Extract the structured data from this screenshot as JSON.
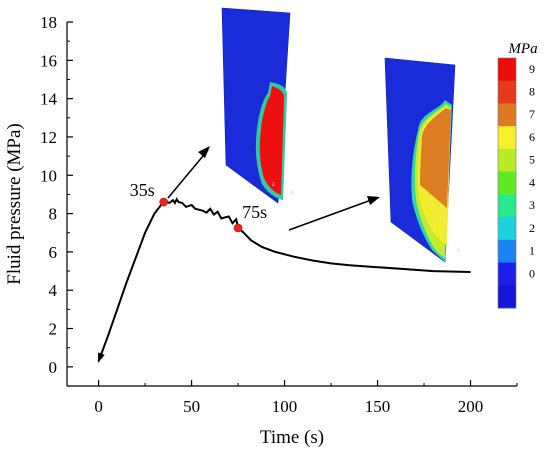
{
  "chart_data": {
    "type": "line",
    "xlabel": "Time (s)",
    "ylabel": "Fluid pressure (MPa)",
    "xlim": [
      -17,
      225
    ],
    "ylim": [
      -1,
      18
    ],
    "xticks": [
      0,
      50,
      100,
      150,
      200
    ],
    "yticks": [
      0,
      2,
      4,
      6,
      8,
      10,
      12,
      14,
      16,
      18
    ],
    "grid": false,
    "series": [
      {
        "x": [
          0,
          5,
          10,
          15,
          20,
          25,
          30,
          34,
          35,
          36,
          38,
          40,
          41,
          42,
          43,
          45,
          47,
          50,
          52,
          54,
          56,
          58,
          60,
          62,
          64,
          66,
          68,
          70,
          72,
          74,
          75,
          78,
          82,
          88,
          95,
          105,
          115,
          125,
          135,
          150,
          165,
          180,
          200
        ],
        "y": [
          0.3,
          1.6,
          3.0,
          4.4,
          5.7,
          7.0,
          8.0,
          8.5,
          8.6,
          8.65,
          8.55,
          8.7,
          8.55,
          8.75,
          8.6,
          8.55,
          8.35,
          8.45,
          8.25,
          8.2,
          8.15,
          8.05,
          8.25,
          7.95,
          8.1,
          7.75,
          7.8,
          7.85,
          7.5,
          7.7,
          7.25,
          7.0,
          6.6,
          6.25,
          6.0,
          5.75,
          5.55,
          5.4,
          5.3,
          5.2,
          5.1,
          5.0,
          4.95
        ]
      }
    ],
    "markers": [
      {
        "label": "35s",
        "x": 35,
        "y": 8.6
      },
      {
        "label": "75s",
        "x": 75,
        "y": 7.25
      }
    ],
    "colorbar": {
      "title": "MPa",
      "levels": [
        "9",
        "8",
        "7",
        "6",
        "5",
        "4",
        "3",
        "2",
        "1",
        "0"
      ],
      "colors": [
        "#ee0d0d",
        "#e63b1a",
        "#dd7a22",
        "#f6ef2a",
        "#b8ec26",
        "#5fea26",
        "#27e98c",
        "#1bd2dd",
        "#1b83f2",
        "#1b1fe9",
        "#1515d6"
      ]
    }
  }
}
